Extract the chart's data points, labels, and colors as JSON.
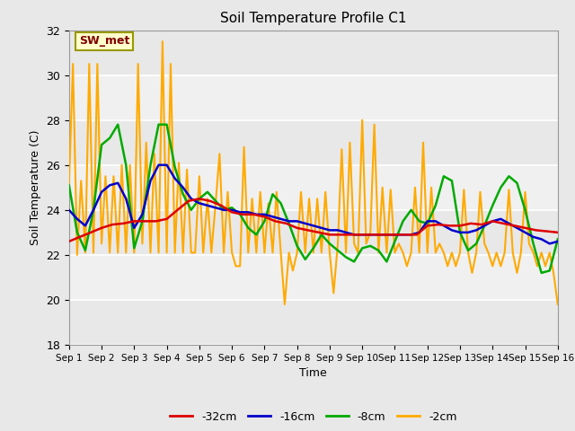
{
  "title": "Soil Temperature Profile C1",
  "xlabel": "Time",
  "ylabel": "Soil Temperature (C)",
  "ylim": [
    18,
    32
  ],
  "xlim": [
    0,
    15
  ],
  "xtick_labels": [
    "Sep 1",
    "Sep 2",
    "Sep 3",
    "Sep 4",
    "Sep 5",
    "Sep 6",
    "Sep 7",
    "Sep 8",
    "Sep 9",
    "Sep 10",
    "Sep 11",
    "Sep 12",
    "Sep 13",
    "Sep 14",
    "Sep 15",
    "Sep 16"
  ],
  "ytick_values": [
    18,
    20,
    22,
    24,
    26,
    28,
    30,
    32
  ],
  "fig_bg_color": "#e8e8e8",
  "plot_bg_color": "#e8e8e8",
  "inner_bg_color": "#f0f0f0",
  "grid_color": "#ffffff",
  "annotation_text": "SW_met",
  "annotation_box_facecolor": "#ffffcc",
  "annotation_text_color": "#800000",
  "annotation_box_edgecolor": "#999900",
  "series": {
    "-32cm": {
      "color": "#dd0000",
      "linewidth": 1.8,
      "x": [
        0.0,
        0.33,
        0.67,
        1.0,
        1.33,
        1.67,
        2.0,
        2.33,
        2.67,
        3.0,
        3.33,
        3.67,
        4.0,
        4.33,
        4.67,
        5.0,
        5.33,
        5.67,
        6.0,
        6.33,
        6.67,
        7.0,
        7.33,
        7.67,
        8.0,
        8.33,
        8.67,
        9.0,
        9.33,
        9.67,
        10.0,
        10.33,
        10.67,
        11.0,
        11.33,
        11.67,
        12.0,
        12.33,
        12.67,
        13.0,
        13.33,
        13.67,
        14.0,
        14.33,
        14.67,
        15.0
      ],
      "y": [
        22.6,
        22.8,
        23.0,
        23.2,
        23.35,
        23.4,
        23.5,
        23.5,
        23.5,
        23.6,
        24.0,
        24.4,
        24.5,
        24.4,
        24.2,
        23.9,
        23.8,
        23.8,
        23.7,
        23.5,
        23.4,
        23.2,
        23.1,
        23.0,
        22.9,
        22.9,
        22.9,
        22.9,
        22.9,
        22.9,
        22.9,
        22.9,
        22.9,
        23.3,
        23.35,
        23.3,
        23.3,
        23.4,
        23.35,
        23.5,
        23.4,
        23.3,
        23.2,
        23.1,
        23.05,
        23.0
      ]
    },
    "-16cm": {
      "color": "#0000cc",
      "linewidth": 1.8,
      "x": [
        0.0,
        0.25,
        0.5,
        0.75,
        1.0,
        1.25,
        1.5,
        1.75,
        2.0,
        2.25,
        2.5,
        2.75,
        3.0,
        3.25,
        3.5,
        3.75,
        4.0,
        4.25,
        4.5,
        4.75,
        5.0,
        5.25,
        5.5,
        5.75,
        6.0,
        6.25,
        6.5,
        6.75,
        7.0,
        7.25,
        7.5,
        7.75,
        8.0,
        8.25,
        8.5,
        8.75,
        9.0,
        9.25,
        9.5,
        9.75,
        10.0,
        10.25,
        10.5,
        10.75,
        11.0,
        11.25,
        11.5,
        11.75,
        12.0,
        12.25,
        12.5,
        12.75,
        13.0,
        13.25,
        13.5,
        13.75,
        14.0,
        14.25,
        14.5,
        14.75,
        15.0
      ],
      "y": [
        24.0,
        23.6,
        23.3,
        24.0,
        24.8,
        25.1,
        25.2,
        24.5,
        23.2,
        23.8,
        25.3,
        26.0,
        26.0,
        25.4,
        25.0,
        24.5,
        24.3,
        24.2,
        24.1,
        24.0,
        24.0,
        23.9,
        23.9,
        23.8,
        23.8,
        23.7,
        23.6,
        23.5,
        23.5,
        23.4,
        23.3,
        23.2,
        23.1,
        23.1,
        23.0,
        22.9,
        22.9,
        22.9,
        22.9,
        22.9,
        22.9,
        22.9,
        22.9,
        23.0,
        23.5,
        23.5,
        23.3,
        23.1,
        23.0,
        23.0,
        23.1,
        23.3,
        23.5,
        23.6,
        23.4,
        23.2,
        23.0,
        22.8,
        22.7,
        22.5,
        22.6
      ]
    },
    "-8cm": {
      "color": "#00aa00",
      "linewidth": 1.8,
      "x": [
        0.0,
        0.25,
        0.5,
        0.75,
        1.0,
        1.25,
        1.5,
        1.75,
        2.0,
        2.25,
        2.5,
        2.75,
        3.0,
        3.25,
        3.5,
        3.75,
        4.0,
        4.25,
        4.5,
        4.75,
        5.0,
        5.25,
        5.5,
        5.75,
        6.0,
        6.25,
        6.5,
        6.75,
        7.0,
        7.25,
        7.5,
        7.75,
        8.0,
        8.25,
        8.5,
        8.75,
        9.0,
        9.25,
        9.5,
        9.75,
        10.0,
        10.25,
        10.5,
        10.75,
        11.0,
        11.25,
        11.5,
        11.75,
        12.0,
        12.25,
        12.5,
        12.75,
        13.0,
        13.25,
        13.5,
        13.75,
        14.0,
        14.25,
        14.5,
        14.75,
        15.0
      ],
      "y": [
        25.1,
        23.0,
        22.2,
        24.0,
        26.9,
        27.2,
        27.8,
        26.0,
        22.3,
        23.5,
        26.0,
        27.8,
        27.8,
        25.9,
        24.7,
        24.0,
        24.5,
        24.8,
        24.4,
        24.0,
        24.1,
        23.8,
        23.2,
        22.9,
        23.5,
        24.7,
        24.3,
        23.4,
        22.4,
        21.8,
        22.3,
        22.9,
        22.5,
        22.2,
        21.9,
        21.7,
        22.3,
        22.4,
        22.2,
        21.7,
        22.6,
        23.5,
        24.0,
        23.5,
        23.4,
        24.2,
        25.5,
        25.3,
        23.0,
        22.2,
        22.5,
        23.3,
        24.2,
        25.0,
        25.5,
        25.2,
        24.0,
        22.5,
        21.2,
        21.3,
        22.7
      ]
    },
    "-2cm": {
      "color": "#ffaa00",
      "linewidth": 1.5,
      "x": [
        0.0,
        0.12,
        0.25,
        0.37,
        0.5,
        0.62,
        0.75,
        0.87,
        1.0,
        1.12,
        1.25,
        1.37,
        1.5,
        1.62,
        1.75,
        1.87,
        2.0,
        2.12,
        2.25,
        2.37,
        2.5,
        2.62,
        2.75,
        2.87,
        3.0,
        3.12,
        3.25,
        3.37,
        3.5,
        3.62,
        3.75,
        3.87,
        4.0,
        4.12,
        4.25,
        4.37,
        4.5,
        4.62,
        4.75,
        4.87,
        5.0,
        5.12,
        5.25,
        5.37,
        5.5,
        5.62,
        5.75,
        5.87,
        6.0,
        6.12,
        6.25,
        6.37,
        6.5,
        6.62,
        6.75,
        6.87,
        7.0,
        7.12,
        7.25,
        7.37,
        7.5,
        7.62,
        7.75,
        7.87,
        8.0,
        8.12,
        8.25,
        8.37,
        8.5,
        8.62,
        8.75,
        8.87,
        9.0,
        9.12,
        9.25,
        9.37,
        9.5,
        9.62,
        9.75,
        9.87,
        10.0,
        10.12,
        10.25,
        10.37,
        10.5,
        10.62,
        10.75,
        10.87,
        11.0,
        11.12,
        11.25,
        11.37,
        11.5,
        11.62,
        11.75,
        11.87,
        12.0,
        12.12,
        12.25,
        12.37,
        12.5,
        12.62,
        12.75,
        12.87,
        13.0,
        13.12,
        13.25,
        13.37,
        13.5,
        13.62,
        13.75,
        13.87,
        14.0,
        14.12,
        14.25,
        14.37,
        14.5,
        14.62,
        14.75,
        14.87,
        15.0
      ],
      "y": [
        25.1,
        30.5,
        22.0,
        25.3,
        22.1,
        30.5,
        22.1,
        30.5,
        22.5,
        25.5,
        22.1,
        25.5,
        22.1,
        26.0,
        22.1,
        26.0,
        22.1,
        30.5,
        22.5,
        27.0,
        22.1,
        26.5,
        22.1,
        31.5,
        22.1,
        30.5,
        22.1,
        26.1,
        22.1,
        25.8,
        22.1,
        22.1,
        25.5,
        22.1,
        24.5,
        22.1,
        24.3,
        26.5,
        22.1,
        24.8,
        22.1,
        21.5,
        21.5,
        26.8,
        22.1,
        24.5,
        22.1,
        24.8,
        22.1,
        24.3,
        22.1,
        24.8,
        22.1,
        19.8,
        22.1,
        21.3,
        22.1,
        24.8,
        22.1,
        24.5,
        22.1,
        24.5,
        22.1,
        24.8,
        22.1,
        20.3,
        22.5,
        26.7,
        22.1,
        27.0,
        22.5,
        22.1,
        28.0,
        22.5,
        23.0,
        27.8,
        22.1,
        25.0,
        22.1,
        24.9,
        22.1,
        22.5,
        22.1,
        21.5,
        22.1,
        25.0,
        22.1,
        27.0,
        22.1,
        25.0,
        22.1,
        22.5,
        22.1,
        21.5,
        22.1,
        21.5,
        22.1,
        24.9,
        22.1,
        21.2,
        22.1,
        24.8,
        22.5,
        22.1,
        21.5,
        22.1,
        21.5,
        22.1,
        24.9,
        22.1,
        21.2,
        22.1,
        24.8,
        22.5,
        22.1,
        21.5,
        22.1,
        21.5,
        22.1,
        21.2,
        19.8
      ]
    }
  }
}
